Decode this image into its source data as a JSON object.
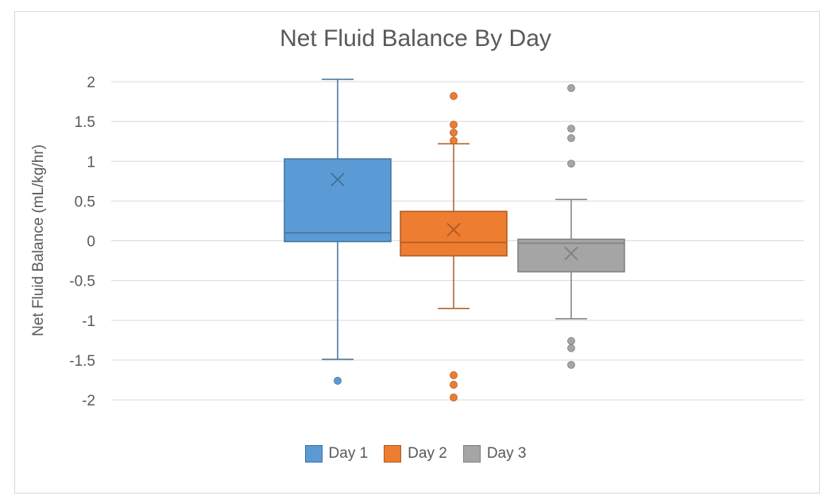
{
  "chart_data": {
    "type": "box",
    "title": "Net Fluid Balance By Day",
    "xlabel": "",
    "ylabel": "Net Fluid Balance (mL/kg/hr)",
    "ylim": [
      -2,
      2
    ],
    "yticks": [
      "2",
      "1.5",
      "1",
      "0.5",
      "0",
      "-0.5",
      "-1",
      "-1.5",
      "-2"
    ],
    "ytick_values": [
      2,
      1.5,
      1,
      0.5,
      0,
      -0.5,
      -1,
      -1.5,
      -2
    ],
    "grid": true,
    "legend_position": "bottom",
    "series": [
      {
        "name": "Day 1",
        "color": "#5b9bd5",
        "edge": "#41719c",
        "whisker_low": -1.49,
        "q1": -0.01,
        "median": 0.1,
        "q3": 1.03,
        "whisker_high": 2.03,
        "mean": 0.77,
        "outliers": [
          -1.76
        ]
      },
      {
        "name": "Day 2",
        "color": "#ed7d31",
        "edge": "#ae5a21",
        "whisker_low": -0.85,
        "q1": -0.19,
        "median": -0.02,
        "q3": 0.37,
        "whisker_high": 1.22,
        "mean": 0.14,
        "outliers": [
          1.82,
          1.46,
          1.36,
          1.26,
          -1.69,
          -1.81,
          -1.97
        ]
      },
      {
        "name": "Day 3",
        "color": "#a5a5a5",
        "edge": "#7f7f7f",
        "whisker_low": -0.98,
        "q1": -0.39,
        "median": -0.03,
        "q3": 0.02,
        "whisker_high": 0.52,
        "mean": -0.16,
        "outliers": [
          1.92,
          1.41,
          1.29,
          0.97,
          -1.26,
          -1.35,
          -1.56
        ]
      }
    ]
  }
}
